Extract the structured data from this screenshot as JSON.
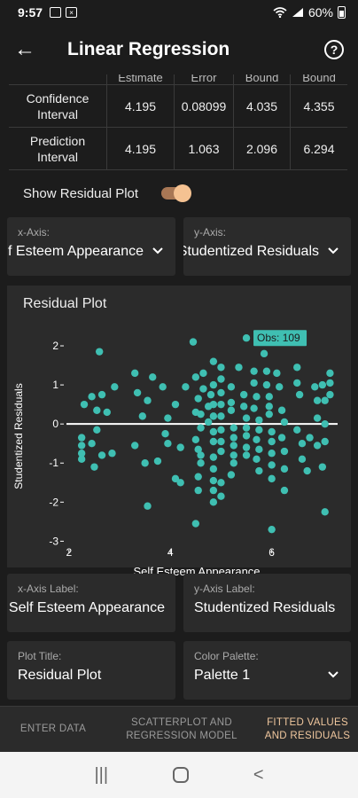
{
  "status": {
    "time": "9:57",
    "battery": "60%"
  },
  "app": {
    "title": "Linear Regression"
  },
  "table": {
    "headers": [
      "",
      "Estimate",
      "Error",
      "Bound",
      "Bound"
    ],
    "rows": [
      {
        "label": "Confidence Interval",
        "values": [
          "4.195",
          "0.08099",
          "4.035",
          "4.355"
        ]
      },
      {
        "label": "Prediction Interval",
        "values": [
          "4.195",
          "1.063",
          "2.096",
          "6.294"
        ]
      }
    ]
  },
  "toggle": {
    "label": "Show Residual Plot",
    "on": true
  },
  "axis_selects": {
    "x": {
      "label": "x-Axis:",
      "value": "Self Esteem Appearance"
    },
    "y": {
      "label": "y-Axis:",
      "value": "Studentized Residuals"
    }
  },
  "plot_card": {
    "title": "Residual Plot",
    "tooltip": "Obs: 109"
  },
  "settings": {
    "x_label": {
      "label": "x-Axis Label:",
      "value": "Self Esteem Appearance"
    },
    "y_label": {
      "label": "y-Axis Label:",
      "value": "Studentized Residuals"
    },
    "plot_title": {
      "label": "Plot Title:",
      "value": "Residual Plot"
    },
    "palette": {
      "label": "Color Palette:",
      "value": "Palette 1"
    }
  },
  "bottom_nav": [
    {
      "label": "ENTER DATA",
      "active": false
    },
    {
      "label": "SCATTERPLOT AND REGRESSION MODEL",
      "active": false
    },
    {
      "label": "FITTED VALUES AND RESIDUALS",
      "active": true
    }
  ],
  "colors": {
    "accent": "#f0c79e",
    "point": "#3fbfb2",
    "card": "#2b2b2b",
    "background": "#1c1c1c"
  },
  "chart_data": {
    "type": "scatter",
    "title": "",
    "xlabel": "Self Esteem Appearance",
    "ylabel": "Studentized Residuals",
    "xlim": [
      1.95,
      7.3
    ],
    "ylim": [
      -3.15,
      2.5
    ],
    "xticks": [
      2,
      4,
      6
    ],
    "yticks": [
      -3,
      -2,
      -1,
      0,
      1,
      2
    ],
    "reference_line_y": 0,
    "highlight": {
      "label": "Obs: 109",
      "x": 5.5,
      "y": 2.2
    },
    "points": [
      [
        2.6,
        1.85
      ],
      [
        2.45,
        0.7
      ],
      [
        2.65,
        0.75
      ],
      [
        2.9,
        0.95
      ],
      [
        2.3,
        0.5
      ],
      [
        2.55,
        0.35
      ],
      [
        2.75,
        0.3
      ],
      [
        2.25,
        -0.35
      ],
      [
        2.25,
        -0.55
      ],
      [
        2.25,
        -0.75
      ],
      [
        2.25,
        -0.9
      ],
      [
        2.45,
        -0.5
      ],
      [
        2.5,
        -1.1
      ],
      [
        2.65,
        -0.8
      ],
      [
        2.85,
        -0.75
      ],
      [
        2.55,
        -0.15
      ],
      [
        3.3,
        1.3
      ],
      [
        3.35,
        0.8
      ],
      [
        3.55,
        0.6
      ],
      [
        3.65,
        1.2
      ],
      [
        3.85,
        0.95
      ],
      [
        3.45,
        0.2
      ],
      [
        3.3,
        -0.55
      ],
      [
        3.5,
        -1.0
      ],
      [
        3.55,
        -2.1
      ],
      [
        3.75,
        -0.95
      ],
      [
        3.95,
        -0.5
      ],
      [
        3.9,
        -0.25
      ],
      [
        3.95,
        0.15
      ],
      [
        4.1,
        0.5
      ],
      [
        4.2,
        -0.6
      ],
      [
        4.1,
        -1.4
      ],
      [
        4.2,
        -1.5
      ],
      [
        4.3,
        0.95
      ],
      [
        4.5,
        1.2
      ],
      [
        4.55,
        0.65
      ],
      [
        4.5,
        0.3
      ],
      [
        4.6,
        0.25
      ],
      [
        4.6,
        -0.1
      ],
      [
        4.5,
        -0.4
      ],
      [
        4.55,
        -0.65
      ],
      [
        4.6,
        -0.8
      ],
      [
        4.6,
        -1.0
      ],
      [
        4.55,
        -1.35
      ],
      [
        4.55,
        -1.7
      ],
      [
        4.5,
        -2.55
      ],
      [
        4.45,
        2.1
      ],
      [
        4.65,
        1.3
      ],
      [
        4.65,
        0.9
      ],
      [
        4.75,
        0.45
      ],
      [
        4.75,
        0.05
      ],
      [
        4.85,
        1.6
      ],
      [
        4.85,
        1.0
      ],
      [
        4.8,
        0.75
      ],
      [
        4.85,
        0.5
      ],
      [
        4.85,
        0.2
      ],
      [
        4.85,
        -0.2
      ],
      [
        4.85,
        -0.45
      ],
      [
        4.85,
        -0.85
      ],
      [
        4.85,
        -1.15
      ],
      [
        4.85,
        -1.45
      ],
      [
        4.85,
        -1.7
      ],
      [
        4.85,
        -2.0
      ],
      [
        5.0,
        1.45
      ],
      [
        5.0,
        1.15
      ],
      [
        5.0,
        0.8
      ],
      [
        5.0,
        0.5
      ],
      [
        5.0,
        0.2
      ],
      [
        5.0,
        -0.15
      ],
      [
        5.0,
        -0.45
      ],
      [
        5.0,
        -0.7
      ],
      [
        5.0,
        -1.5
      ],
      [
        5.0,
        -1.85
      ],
      [
        5.2,
        0.95
      ],
      [
        5.2,
        0.55
      ],
      [
        5.2,
        0.35
      ],
      [
        5.25,
        -0.1
      ],
      [
        5.25,
        -0.35
      ],
      [
        5.25,
        -0.55
      ],
      [
        5.25,
        -0.8
      ],
      [
        5.25,
        -1.0
      ],
      [
        5.2,
        -1.3
      ],
      [
        5.35,
        1.45
      ],
      [
        5.45,
        0.75
      ],
      [
        5.45,
        0.45
      ],
      [
        5.5,
        0.15
      ],
      [
        5.5,
        -0.1
      ],
      [
        5.5,
        -0.3
      ],
      [
        5.5,
        -0.6
      ],
      [
        5.5,
        -0.8
      ],
      [
        5.65,
        1.35
      ],
      [
        5.65,
        1.05
      ],
      [
        5.7,
        0.7
      ],
      [
        5.65,
        0.4
      ],
      [
        5.75,
        0.1
      ],
      [
        5.75,
        -0.15
      ],
      [
        5.7,
        -0.4
      ],
      [
        5.75,
        -0.65
      ],
      [
        5.7,
        -0.9
      ],
      [
        5.75,
        -1.2
      ],
      [
        5.85,
        1.8
      ],
      [
        5.9,
        1.35
      ],
      [
        5.9,
        1.0
      ],
      [
        5.95,
        0.7
      ],
      [
        5.95,
        0.45
      ],
      [
        5.95,
        0.25
      ],
      [
        6.0,
        -0.2
      ],
      [
        6.0,
        -0.45
      ],
      [
        6.0,
        -0.75
      ],
      [
        6.0,
        -1.05
      ],
      [
        6.0,
        -1.4
      ],
      [
        6.0,
        -2.7
      ],
      [
        6.1,
        1.3
      ],
      [
        6.15,
        0.95
      ],
      [
        6.2,
        0.35
      ],
      [
        6.25,
        0.05
      ],
      [
        6.2,
        -0.35
      ],
      [
        6.25,
        -0.7
      ],
      [
        6.25,
        -1.15
      ],
      [
        6.25,
        -1.7
      ],
      [
        6.5,
        1.45
      ],
      [
        6.5,
        1.05
      ],
      [
        6.55,
        0.75
      ],
      [
        6.5,
        -0.15
      ],
      [
        6.6,
        -0.5
      ],
      [
        6.6,
        -0.9
      ],
      [
        6.7,
        -1.2
      ],
      [
        6.75,
        -0.35
      ],
      [
        6.85,
        0.95
      ],
      [
        6.9,
        0.6
      ],
      [
        6.9,
        0.15
      ],
      [
        6.9,
        -0.55
      ],
      [
        7.0,
        1.0
      ],
      [
        7.05,
        0.6
      ],
      [
        7.05,
        -0.45
      ],
      [
        7.0,
        -1.1
      ],
      [
        7.05,
        -2.25
      ],
      [
        7.15,
        1.3
      ],
      [
        7.15,
        1.05
      ],
      [
        7.15,
        0.75
      ],
      [
        7.05,
        0.0
      ]
    ]
  }
}
